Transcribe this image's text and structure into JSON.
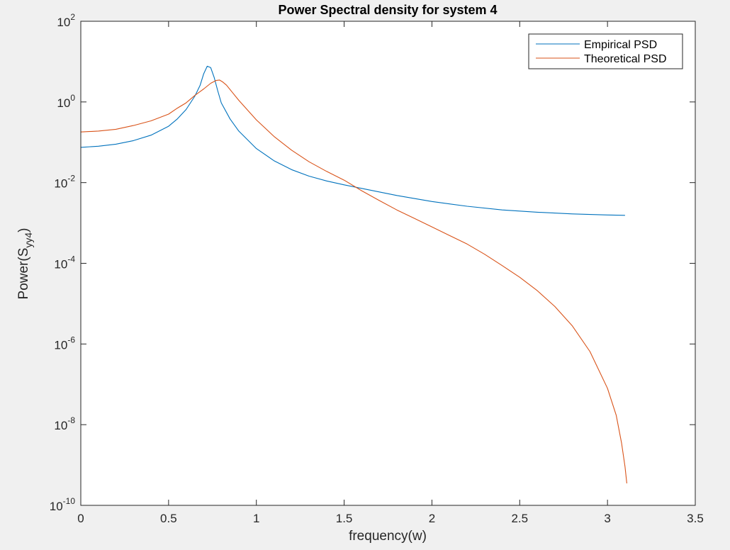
{
  "chart_data": {
    "type": "line",
    "title": "Power Spectral density for system 4",
    "xlabel": "frequency(w)",
    "ylabel": {
      "main": "Power(S",
      "sub": "yy4",
      "close": ")"
    },
    "xlim": [
      0,
      3.5
    ],
    "ylim": [
      1e-10,
      100
    ],
    "yscale": "log",
    "xticks": [
      0,
      0.5,
      1,
      1.5,
      2,
      2.5,
      3,
      3.5
    ],
    "xtick_labels": [
      "0",
      "0.5",
      "1",
      "1.5",
      "2",
      "2.5",
      "3",
      "3.5"
    ],
    "yticks": [
      {
        "exp": 2,
        "base": "10",
        "sup": "2"
      },
      {
        "exp": 0,
        "base": "10",
        "sup": "0"
      },
      {
        "exp": -2,
        "base": "10",
        "sup": "-2"
      },
      {
        "exp": -4,
        "base": "10",
        "sup": "-4"
      },
      {
        "exp": -6,
        "base": "10",
        "sup": "-6"
      },
      {
        "exp": -8,
        "base": "10",
        "sup": "-8"
      },
      {
        "exp": -10,
        "base": "10",
        "sup": "-10"
      }
    ],
    "grid": false,
    "legend_position": "top-right",
    "series": [
      {
        "name": "Empirical PSD",
        "color": "#0072BD",
        "x": [
          0,
          0.1,
          0.2,
          0.3,
          0.4,
          0.5,
          0.55,
          0.6,
          0.65,
          0.68,
          0.7,
          0.72,
          0.74,
          0.76,
          0.78,
          0.8,
          0.85,
          0.9,
          1.0,
          1.1,
          1.2,
          1.3,
          1.4,
          1.5,
          1.6,
          1.8,
          2.0,
          2.2,
          2.4,
          2.6,
          2.8,
          3.0,
          3.1
        ],
        "y": [
          0.075,
          0.08,
          0.09,
          0.11,
          0.15,
          0.25,
          0.38,
          0.65,
          1.4,
          2.6,
          5.0,
          7.7,
          7.1,
          4.0,
          1.9,
          0.95,
          0.38,
          0.19,
          0.07,
          0.035,
          0.021,
          0.0145,
          0.011,
          0.0088,
          0.0072,
          0.0048,
          0.0034,
          0.0026,
          0.0021,
          0.00185,
          0.00168,
          0.00158,
          0.00155
        ]
      },
      {
        "name": "Theoretical PSD",
        "color": "#D95319",
        "x": [
          0,
          0.1,
          0.2,
          0.3,
          0.4,
          0.5,
          0.55,
          0.6,
          0.65,
          0.7,
          0.74,
          0.77,
          0.79,
          0.81,
          0.83,
          0.86,
          0.9,
          1.0,
          1.1,
          1.2,
          1.3,
          1.4,
          1.5,
          1.6,
          1.7,
          1.8,
          1.9,
          2.0,
          2.1,
          2.2,
          2.3,
          2.4,
          2.5,
          2.6,
          2.7,
          2.8,
          2.9,
          3.0,
          3.05,
          3.08,
          3.1,
          3.11
        ],
        "y": [
          0.18,
          0.19,
          0.21,
          0.26,
          0.34,
          0.5,
          0.7,
          0.95,
          1.45,
          2.1,
          2.9,
          3.4,
          3.5,
          3.1,
          2.6,
          1.8,
          1.1,
          0.36,
          0.14,
          0.064,
          0.033,
          0.019,
          0.0115,
          0.0063,
          0.0036,
          0.0021,
          0.0013,
          0.0008,
          0.00049,
          0.0003,
          0.000168,
          8.8e-05,
          4.5e-05,
          2.1e-05,
          8.5e-06,
          2.8e-06,
          6.5e-07,
          8e-08,
          1.7e-08,
          3.5e-09,
          9e-10,
          3.5e-10
        ]
      }
    ]
  }
}
